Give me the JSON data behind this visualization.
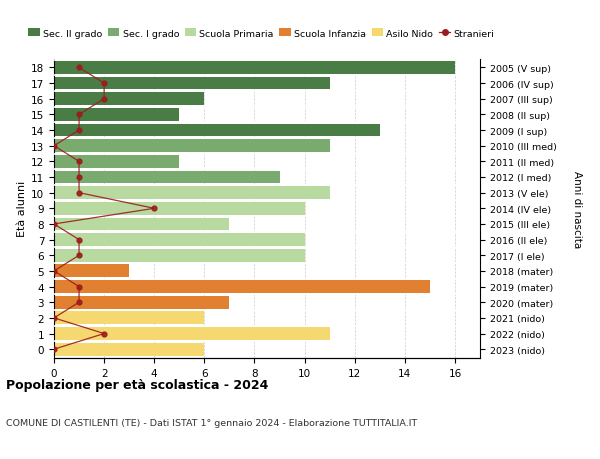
{
  "ages": [
    18,
    17,
    16,
    15,
    14,
    13,
    12,
    11,
    10,
    9,
    8,
    7,
    6,
    5,
    4,
    3,
    2,
    1,
    0
  ],
  "right_labels": [
    "2005 (V sup)",
    "2006 (IV sup)",
    "2007 (III sup)",
    "2008 (II sup)",
    "2009 (I sup)",
    "2010 (III med)",
    "2011 (II med)",
    "2012 (I med)",
    "2013 (V ele)",
    "2014 (IV ele)",
    "2015 (III ele)",
    "2016 (II ele)",
    "2017 (I ele)",
    "2018 (mater)",
    "2019 (mater)",
    "2020 (mater)",
    "2021 (nido)",
    "2022 (nido)",
    "2023 (nido)"
  ],
  "bar_values": [
    16,
    11,
    6,
    5,
    13,
    11,
    5,
    9,
    11,
    10,
    7,
    10,
    10,
    3,
    15,
    7,
    6,
    11,
    6
  ],
  "bar_colors": [
    "#4a7c45",
    "#4a7c45",
    "#4a7c45",
    "#4a7c45",
    "#4a7c45",
    "#7aab6e",
    "#7aab6e",
    "#7aab6e",
    "#b8d9a0",
    "#b8d9a0",
    "#b8d9a0",
    "#b8d9a0",
    "#b8d9a0",
    "#e08030",
    "#e08030",
    "#e08030",
    "#f5d870",
    "#f5d870",
    "#f5d870"
  ],
  "stranieri_values": [
    1,
    2,
    2,
    1,
    1,
    0,
    1,
    1,
    1,
    4,
    0,
    1,
    1,
    0,
    1,
    1,
    0,
    2,
    0
  ],
  "stranieri_color": "#9b1c1c",
  "legend_entries": [
    {
      "label": "Sec. II grado",
      "color": "#4a7c45"
    },
    {
      "label": "Sec. I grado",
      "color": "#7aab6e"
    },
    {
      "label": "Scuola Primaria",
      "color": "#b8d9a0"
    },
    {
      "label": "Scuola Infanzia",
      "color": "#e08030"
    },
    {
      "label": "Asilo Nido",
      "color": "#f5d870"
    }
  ],
  "title": "Popolazione per età scolastica - 2024",
  "subtitle": "COMUNE DI CASTILENTI (TE) - Dati ISTAT 1° gennaio 2024 - Elaborazione TUTTITALIA.IT",
  "ylabel": "Età alunni",
  "right_ylabel": "Anni di nascita",
  "xlim": [
    0,
    17
  ],
  "xticks": [
    0,
    2,
    4,
    6,
    8,
    10,
    12,
    14,
    16
  ],
  "background_color": "#ffffff",
  "bar_height": 0.82
}
